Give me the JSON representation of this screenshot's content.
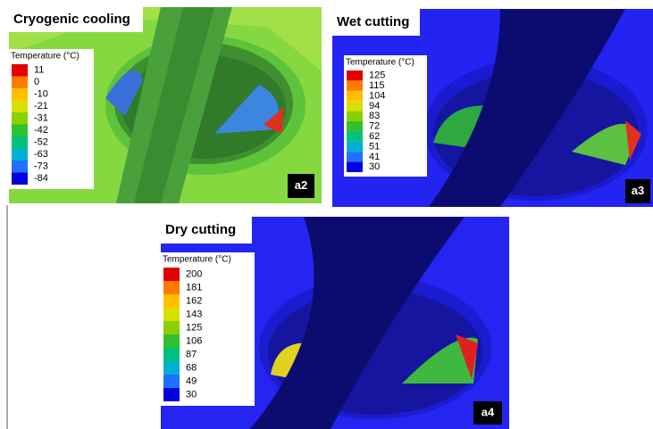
{
  "panels": [
    {
      "title": "Cryogenic cooling",
      "legend": {
        "title": "Temperature (°C)",
        "labels": [
          11,
          0,
          -10,
          -21,
          -31,
          -42,
          -52,
          -63,
          -73,
          -84
        ]
      },
      "tag": "a2"
    },
    {
      "title": "Wet cutting",
      "legend": {
        "title": "Temperature (°C)",
        "labels": [
          125,
          115,
          104,
          94,
          83,
          72,
          62,
          51,
          41,
          30
        ]
      },
      "tag": "a3"
    },
    {
      "title": "Dry cutting",
      "legend": {
        "title": "Temperature (°C)",
        "labels": [
          200,
          181,
          162,
          143,
          125,
          106,
          87,
          68,
          49,
          30
        ]
      },
      "tag": "a4"
    }
  ]
}
